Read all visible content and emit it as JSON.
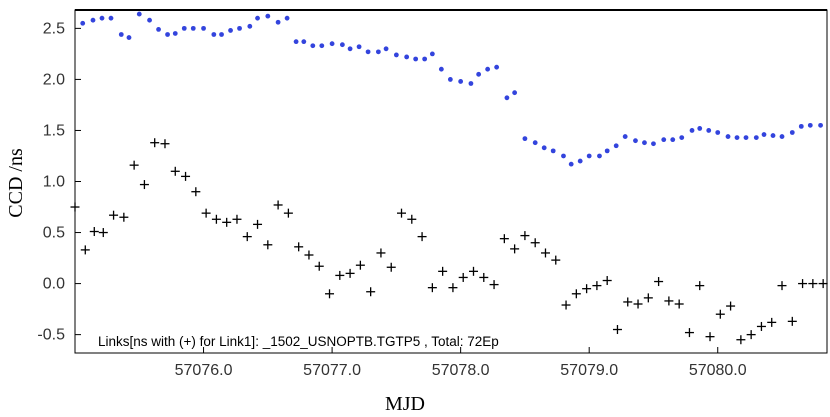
{
  "chart_data": {
    "type": "scatter",
    "title": "",
    "xlabel": "MJD",
    "ylabel": "CCD /ns",
    "xlim": [
      57075.0,
      57080.85
    ],
    "ylim": [
      -0.68,
      2.68
    ],
    "x_ticks": [
      57076.0,
      57077.0,
      57078.0,
      57079.0,
      57080.0
    ],
    "x_tick_labels": [
      "57076.0",
      "57077.0",
      "57078.0",
      "57079.0",
      "57080.0"
    ],
    "y_ticks": [
      -0.5,
      0.0,
      0.5,
      1.0,
      1.5,
      2.0,
      2.5
    ],
    "y_tick_labels": [
      "-0.5",
      "0.0",
      "0.5",
      "1.0",
      "1.5",
      "2.0",
      "2.5"
    ],
    "grid": false,
    "annotation": "Links[ns with (+) for Link1]: _1502_USNOPTB.TGTP5 , Total: 72Ep",
    "series": [
      {
        "marker": "dot",
        "color": "#3344dd",
        "x": [
          57075.06,
          57075.14,
          57075.21,
          57075.28,
          57075.36,
          57075.42,
          57075.5,
          57075.58,
          57075.65,
          57075.72,
          57075.78,
          57075.85,
          57075.92,
          57076.0,
          57076.08,
          57076.14,
          57076.21,
          57076.28,
          57076.36,
          57076.42,
          57076.5,
          57076.58,
          57076.65,
          57076.72,
          57076.78,
          57076.85,
          57076.92,
          57077.0,
          57077.08,
          57077.14,
          57077.21,
          57077.28,
          57077.36,
          57077.42,
          57077.5,
          57077.58,
          57077.65,
          57077.72,
          57077.78,
          57077.85,
          57077.92,
          57078.0,
          57078.08,
          57078.14,
          57078.21,
          57078.28,
          57078.36,
          57078.42,
          57078.5,
          57078.58,
          57078.65,
          57078.72,
          57078.8,
          57078.86,
          57078.93,
          57079.0,
          57079.08,
          57079.14,
          57079.21,
          57079.28,
          57079.36,
          57079.43,
          57079.5,
          57079.58,
          57079.65,
          57079.72,
          57079.8,
          57079.86,
          57079.93,
          57080.0,
          57080.08,
          57080.15,
          57080.22,
          57080.3,
          57080.36,
          57080.43,
          57080.5,
          57080.58,
          57080.65,
          57080.72,
          57080.8
        ],
        "y": [
          2.55,
          2.58,
          2.6,
          2.6,
          2.44,
          2.41,
          2.64,
          2.58,
          2.49,
          2.44,
          2.45,
          2.5,
          2.5,
          2.5,
          2.44,
          2.44,
          2.48,
          2.5,
          2.52,
          2.6,
          2.62,
          2.56,
          2.6,
          2.37,
          2.37,
          2.33,
          2.33,
          2.35,
          2.34,
          2.3,
          2.32,
          2.27,
          2.27,
          2.3,
          2.24,
          2.22,
          2.2,
          2.2,
          2.25,
          2.1,
          2.0,
          1.98,
          1.96,
          2.05,
          2.1,
          2.12,
          1.82,
          1.87,
          1.42,
          1.38,
          1.33,
          1.3,
          1.25,
          1.17,
          1.2,
          1.25,
          1.25,
          1.3,
          1.35,
          1.44,
          1.4,
          1.38,
          1.37,
          1.41,
          1.41,
          1.43,
          1.5,
          1.52,
          1.5,
          1.48,
          1.44,
          1.43,
          1.43,
          1.43,
          1.46,
          1.45,
          1.44,
          1.48,
          1.54,
          1.55,
          1.55
        ]
      },
      {
        "marker": "plus",
        "color": "#000000",
        "x": [
          57075.0,
          57075.08,
          57075.15,
          57075.22,
          57075.3,
          57075.38,
          57075.46,
          57075.54,
          57075.62,
          57075.7,
          57075.78,
          57075.86,
          57075.94,
          57076.02,
          57076.1,
          57076.18,
          57076.26,
          57076.34,
          57076.42,
          57076.5,
          57076.58,
          57076.66,
          57076.74,
          57076.82,
          57076.9,
          57076.98,
          57077.06,
          57077.14,
          57077.22,
          57077.3,
          57077.38,
          57077.46,
          57077.54,
          57077.62,
          57077.7,
          57077.78,
          57077.86,
          57077.94,
          57078.02,
          57078.1,
          57078.18,
          57078.26,
          57078.34,
          57078.42,
          57078.5,
          57078.58,
          57078.66,
          57078.74,
          57078.82,
          57078.9,
          57078.98,
          57079.06,
          57079.14,
          57079.22,
          57079.3,
          57079.38,
          57079.46,
          57079.54,
          57079.62,
          57079.7,
          57079.78,
          57079.86,
          57079.94,
          57080.02,
          57080.1,
          57080.18,
          57080.26,
          57080.34,
          57080.42,
          57080.5,
          57080.58,
          57080.66,
          57080.74,
          57080.82
        ],
        "y": [
          0.75,
          0.33,
          0.51,
          0.5,
          0.67,
          0.65,
          1.16,
          0.97,
          1.38,
          1.37,
          1.1,
          1.05,
          0.9,
          0.69,
          0.63,
          0.6,
          0.63,
          0.46,
          0.58,
          0.38,
          0.77,
          0.69,
          0.36,
          0.28,
          0.17,
          -0.1,
          0.08,
          0.1,
          0.18,
          -0.08,
          0.3,
          0.16,
          0.69,
          0.63,
          0.46,
          -0.04,
          0.12,
          -0.04,
          0.06,
          0.12,
          0.06,
          -0.01,
          0.44,
          0.34,
          0.47,
          0.4,
          0.3,
          0.23,
          -0.21,
          -0.1,
          -0.05,
          -0.02,
          0.03,
          -0.45,
          -0.18,
          -0.2,
          -0.14,
          0.02,
          -0.17,
          -0.2,
          -0.48,
          -0.02,
          -0.52,
          -0.3,
          -0.22,
          -0.55,
          -0.5,
          -0.42,
          -0.38,
          -0.02,
          -0.37,
          0.0,
          0.0,
          0.0
        ]
      }
    ]
  }
}
